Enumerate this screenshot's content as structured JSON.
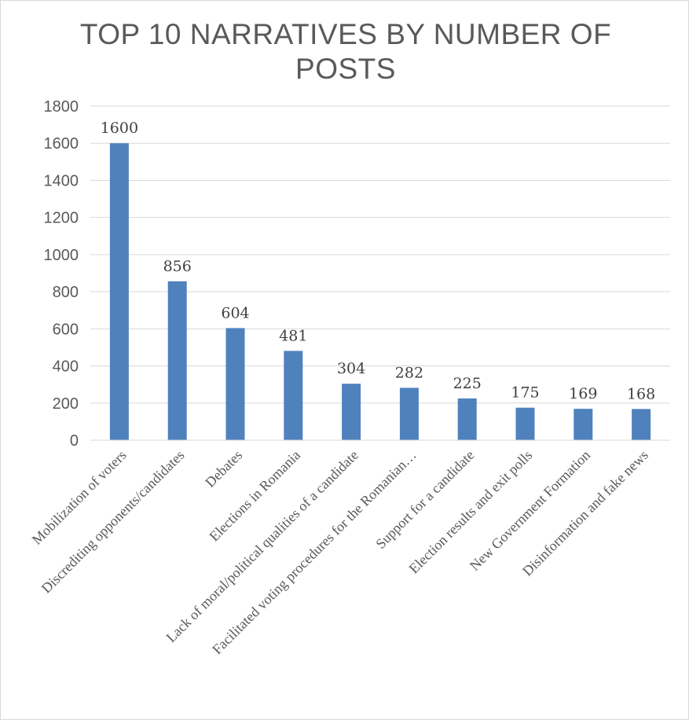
{
  "chart_data": {
    "type": "bar",
    "title": "TOP 10 NARRATIVES BY NUMBER OF POSTS",
    "categories": [
      "Mobilization of voters",
      "Discrediting opponents/candidates",
      "Debates",
      "Elections in Romania",
      "Lack of moral/political qualities of a candidate",
      "Facilitated voting procedures for the Romanian…",
      "Support for a candidate",
      "Election results and exit polls",
      "New Government Formation",
      "Disinformation and fake news"
    ],
    "values": [
      1600,
      856,
      604,
      481,
      304,
      282,
      225,
      175,
      169,
      168
    ],
    "data_labels": [
      "1600",
      "856",
      "604",
      "481",
      "304",
      "282",
      "225",
      "175",
      "169",
      "168"
    ],
    "yticks": [
      "0",
      "200",
      "400",
      "600",
      "800",
      "1000",
      "1200",
      "1400",
      "1600",
      "1800"
    ],
    "ylim": [
      0,
      1800
    ],
    "grid": true,
    "legend": "none",
    "bar_color": "#4f81bd",
    "grid_color": "#d9d9d9",
    "text_color": "#595959"
  }
}
